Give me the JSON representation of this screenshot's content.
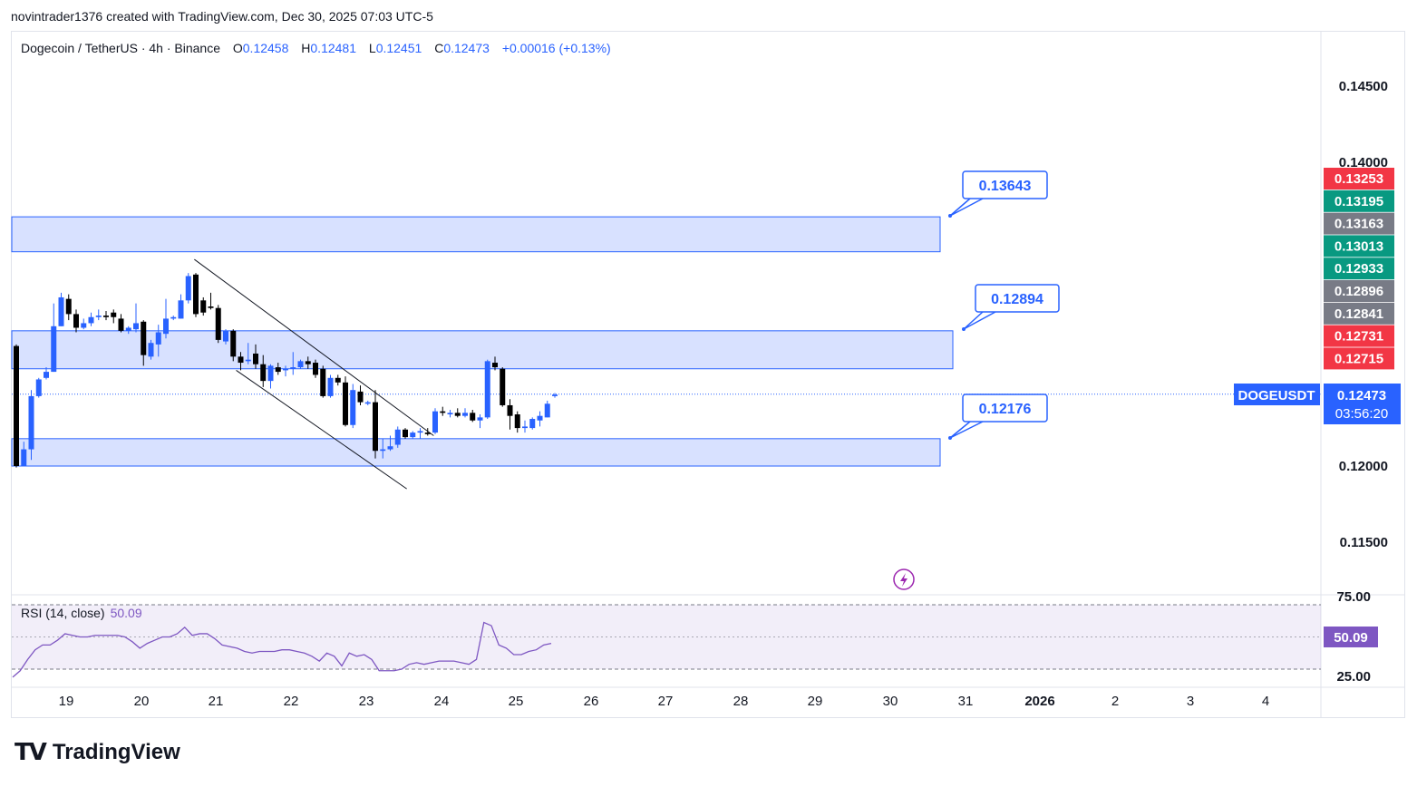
{
  "header": {
    "attribution": "novintrader1376 created with TradingView.com, Dec 30, 2025 07:03 UTC-5"
  },
  "legend": {
    "symbol": "Dogecoin / TetherUS · 4h · Binance",
    "open_label": "O",
    "open": "0.12458",
    "high_label": "H",
    "high": "0.12481",
    "low_label": "L",
    "low": "0.12451",
    "close_label": "C",
    "close": "0.12473",
    "change": "+0.00016 (+0.13%)"
  },
  "rsi": {
    "label": "RSI (14, close)",
    "value": "50.09",
    "axis_ticks": [
      "75.00",
      "25.00"
    ],
    "badge": "50.09",
    "color": "#7e57c2"
  },
  "price_axis": {
    "ticks": [
      "0.14500",
      "0.14000",
      "0.12000",
      "0.11500"
    ],
    "badges": [
      {
        "value": "0.13253",
        "color": "#f23645"
      },
      {
        "value": "0.13195",
        "color": "#089981"
      },
      {
        "value": "0.13163",
        "color": "#787b86"
      },
      {
        "value": "0.13013",
        "color": "#089981"
      },
      {
        "value": "0.12933",
        "color": "#089981"
      },
      {
        "value": "0.12896",
        "color": "#787b86"
      },
      {
        "value": "0.12841",
        "color": "#787b86"
      },
      {
        "value": "0.12731",
        "color": "#f23645"
      },
      {
        "value": "0.12715",
        "color": "#f23645"
      }
    ],
    "symbol_badge": "DOGEUSDT",
    "last_price": "0.12473",
    "countdown": "03:56:20"
  },
  "time_axis": {
    "labels": [
      "19",
      "20",
      "21",
      "22",
      "23",
      "24",
      "25",
      "26",
      "27",
      "28",
      "29",
      "30",
      "31",
      "2026",
      "2",
      "3",
      "4"
    ]
  },
  "callouts": [
    {
      "value": "0.13643"
    },
    {
      "value": "0.12894"
    },
    {
      "value": "0.12176"
    }
  ],
  "footer": {
    "brand": "TradingView"
  },
  "colors": {
    "up": "#2962ff",
    "down": "#000000",
    "zone_fill": "#d1dcff",
    "zone_stroke": "#2962ff"
  },
  "chart_data": {
    "type": "candlestick",
    "symbol": "DOGEUSDT",
    "interval": "4h",
    "ylim": [
      0.1125,
      0.1495
    ],
    "zones": [
      {
        "from": 0.1341,
        "to": 0.1364
      },
      {
        "from": 0.1264,
        "to": 0.1289
      },
      {
        "from": 0.12,
        "to": 0.1218
      }
    ],
    "candles": [
      {
        "o": 0.1279,
        "h": 0.128,
        "l": 0.1199,
        "c": 0.12
      },
      {
        "o": 0.12,
        "h": 0.1216,
        "l": 0.12,
        "c": 0.1211
      },
      {
        "o": 0.1211,
        "h": 0.125,
        "l": 0.1204,
        "c": 0.1246
      },
      {
        "o": 0.1246,
        "h": 0.1258,
        "l": 0.1245,
        "c": 0.1257
      },
      {
        "o": 0.1258,
        "h": 0.1265,
        "l": 0.1257,
        "c": 0.1262
      },
      {
        "o": 0.1262,
        "h": 0.1307,
        "l": 0.1262,
        "c": 0.1292
      },
      {
        "o": 0.1292,
        "h": 0.1314,
        "l": 0.1292,
        "c": 0.1311
      },
      {
        "o": 0.131,
        "h": 0.1313,
        "l": 0.1296,
        "c": 0.13
      },
      {
        "o": 0.13,
        "h": 0.1303,
        "l": 0.1288,
        "c": 0.1291
      },
      {
        "o": 0.1291,
        "h": 0.1297,
        "l": 0.129,
        "c": 0.1294
      },
      {
        "o": 0.1294,
        "h": 0.1301,
        "l": 0.1292,
        "c": 0.1298
      },
      {
        "o": 0.1298,
        "h": 0.1303,
        "l": 0.1296,
        "c": 0.1299
      },
      {
        "o": 0.1299,
        "h": 0.1302,
        "l": 0.1296,
        "c": 0.1298
      },
      {
        "o": 0.1301,
        "h": 0.1303,
        "l": 0.1294,
        "c": 0.1298
      },
      {
        "o": 0.1297,
        "h": 0.13,
        "l": 0.1288,
        "c": 0.1289
      },
      {
        "o": 0.1289,
        "h": 0.1292,
        "l": 0.1287,
        "c": 0.1291
      },
      {
        "o": 0.129,
        "h": 0.1307,
        "l": 0.1288,
        "c": 0.1294
      },
      {
        "o": 0.1295,
        "h": 0.1296,
        "l": 0.1266,
        "c": 0.1273
      },
      {
        "o": 0.1272,
        "h": 0.1283,
        "l": 0.127,
        "c": 0.1281
      },
      {
        "o": 0.128,
        "h": 0.1293,
        "l": 0.1272,
        "c": 0.1288
      },
      {
        "o": 0.1287,
        "h": 0.131,
        "l": 0.1284,
        "c": 0.1297
      },
      {
        "o": 0.1297,
        "h": 0.1299,
        "l": 0.1296,
        "c": 0.1298
      },
      {
        "o": 0.1297,
        "h": 0.1313,
        "l": 0.1297,
        "c": 0.1309
      },
      {
        "o": 0.1309,
        "h": 0.1327,
        "l": 0.1307,
        "c": 0.1325
      },
      {
        "o": 0.1326,
        "h": 0.1327,
        "l": 0.1298,
        "c": 0.13
      },
      {
        "o": 0.1309,
        "h": 0.1311,
        "l": 0.1299,
        "c": 0.1301
      },
      {
        "o": 0.1305,
        "h": 0.1314,
        "l": 0.1303,
        "c": 0.1304
      },
      {
        "o": 0.1304,
        "h": 0.1306,
        "l": 0.1281,
        "c": 0.1283
      },
      {
        "o": 0.1282,
        "h": 0.129,
        "l": 0.128,
        "c": 0.1289
      },
      {
        "o": 0.1289,
        "h": 0.129,
        "l": 0.1269,
        "c": 0.1272
      },
      {
        "o": 0.1272,
        "h": 0.1275,
        "l": 0.1263,
        "c": 0.1268
      },
      {
        "o": 0.1269,
        "h": 0.1281,
        "l": 0.1267,
        "c": 0.127
      },
      {
        "o": 0.1274,
        "h": 0.128,
        "l": 0.1264,
        "c": 0.1267
      },
      {
        "o": 0.1267,
        "h": 0.1273,
        "l": 0.1252,
        "c": 0.1256
      },
      {
        "o": 0.1256,
        "h": 0.1267,
        "l": 0.1251,
        "c": 0.1266
      },
      {
        "o": 0.1265,
        "h": 0.1268,
        "l": 0.126,
        "c": 0.1262
      },
      {
        "o": 0.1263,
        "h": 0.1266,
        "l": 0.1259,
        "c": 0.1264
      },
      {
        "o": 0.1264,
        "h": 0.1275,
        "l": 0.126,
        "c": 0.1265
      },
      {
        "o": 0.1265,
        "h": 0.127,
        "l": 0.1264,
        "c": 0.1269
      },
      {
        "o": 0.1269,
        "h": 0.1272,
        "l": 0.1264,
        "c": 0.1267
      },
      {
        "o": 0.1268,
        "h": 0.127,
        "l": 0.1258,
        "c": 0.126
      },
      {
        "o": 0.1264,
        "h": 0.1266,
        "l": 0.1245,
        "c": 0.1246
      },
      {
        "o": 0.1246,
        "h": 0.126,
        "l": 0.1245,
        "c": 0.1258
      },
      {
        "o": 0.1258,
        "h": 0.126,
        "l": 0.1253,
        "c": 0.1255
      },
      {
        "o": 0.1255,
        "h": 0.1259,
        "l": 0.1226,
        "c": 0.1227
      },
      {
        "o": 0.1227,
        "h": 0.1254,
        "l": 0.1225,
        "c": 0.125
      },
      {
        "o": 0.1249,
        "h": 0.1253,
        "l": 0.124,
        "c": 0.1242
      },
      {
        "o": 0.1241,
        "h": 0.1243,
        "l": 0.124,
        "c": 0.1242
      },
      {
        "o": 0.1242,
        "h": 0.125,
        "l": 0.1205,
        "c": 0.121
      },
      {
        "o": 0.121,
        "h": 0.1218,
        "l": 0.1205,
        "c": 0.1211
      },
      {
        "o": 0.1211,
        "h": 0.122,
        "l": 0.121,
        "c": 0.1213
      },
      {
        "o": 0.1214,
        "h": 0.1226,
        "l": 0.1212,
        "c": 0.1224
      },
      {
        "o": 0.1224,
        "h": 0.1225,
        "l": 0.1218,
        "c": 0.1219
      },
      {
        "o": 0.1219,
        "h": 0.1223,
        "l": 0.1218,
        "c": 0.1222
      },
      {
        "o": 0.1222,
        "h": 0.1225,
        "l": 0.1218,
        "c": 0.1223
      },
      {
        "o": 0.1222,
        "h": 0.1225,
        "l": 0.122,
        "c": 0.1221
      },
      {
        "o": 0.1222,
        "h": 0.1238,
        "l": 0.1221,
        "c": 0.1236
      },
      {
        "o": 0.1236,
        "h": 0.1239,
        "l": 0.1233,
        "c": 0.1235
      },
      {
        "o": 0.1234,
        "h": 0.1237,
        "l": 0.1232,
        "c": 0.1235
      },
      {
        "o": 0.1235,
        "h": 0.1238,
        "l": 0.1232,
        "c": 0.1233
      },
      {
        "o": 0.1233,
        "h": 0.1238,
        "l": 0.1232,
        "c": 0.1235
      },
      {
        "o": 0.1235,
        "h": 0.1237,
        "l": 0.1229,
        "c": 0.123
      },
      {
        "o": 0.123,
        "h": 0.1234,
        "l": 0.1225,
        "c": 0.1232
      },
      {
        "o": 0.1232,
        "h": 0.127,
        "l": 0.1231,
        "c": 0.1269
      },
      {
        "o": 0.1268,
        "h": 0.1272,
        "l": 0.1263,
        "c": 0.1265
      },
      {
        "o": 0.1264,
        "h": 0.1265,
        "l": 0.1239,
        "c": 0.124
      },
      {
        "o": 0.124,
        "h": 0.1244,
        "l": 0.1224,
        "c": 0.1233
      },
      {
        "o": 0.1234,
        "h": 0.1236,
        "l": 0.1222,
        "c": 0.1225
      },
      {
        "o": 0.1225,
        "h": 0.123,
        "l": 0.1222,
        "c": 0.1226
      },
      {
        "o": 0.1225,
        "h": 0.1232,
        "l": 0.1224,
        "c": 0.1231
      },
      {
        "o": 0.123,
        "h": 0.1236,
        "l": 0.1226,
        "c": 0.1233
      },
      {
        "o": 0.1232,
        "h": 0.1243,
        "l": 0.1232,
        "c": 0.1241
      },
      {
        "o": 0.1246,
        "h": 0.1248,
        "l": 0.1245,
        "c": 0.1247
      }
    ],
    "trend_lines": [
      {
        "from": {
          "i": 23.8,
          "p": 0.1336
        },
        "to": {
          "i": 55.8,
          "p": 0.122
        }
      },
      {
        "from": {
          "i": 29.4,
          "p": 0.1263
        },
        "to": {
          "i": 52.2,
          "p": 0.1185
        }
      }
    ],
    "rsi": {
      "ylim": [
        5,
        90
      ],
      "values": [
        25,
        29,
        36,
        42,
        45,
        45,
        48,
        52,
        51,
        50,
        50,
        51,
        51,
        51,
        51,
        50,
        47,
        43,
        46,
        48,
        50,
        50,
        52,
        56,
        51,
        52,
        52,
        49,
        45,
        44,
        43,
        41,
        40,
        41,
        41,
        41,
        42,
        42,
        41,
        40,
        38,
        35,
        40,
        38,
        32,
        40,
        38,
        39,
        36,
        29,
        29,
        29,
        30,
        33,
        34,
        33,
        34,
        35,
        35,
        35,
        34,
        33,
        36,
        59,
        57,
        45,
        43,
        39,
        39,
        41,
        42,
        45,
        46
      ],
      "levels": [
        70,
        30
      ]
    }
  }
}
